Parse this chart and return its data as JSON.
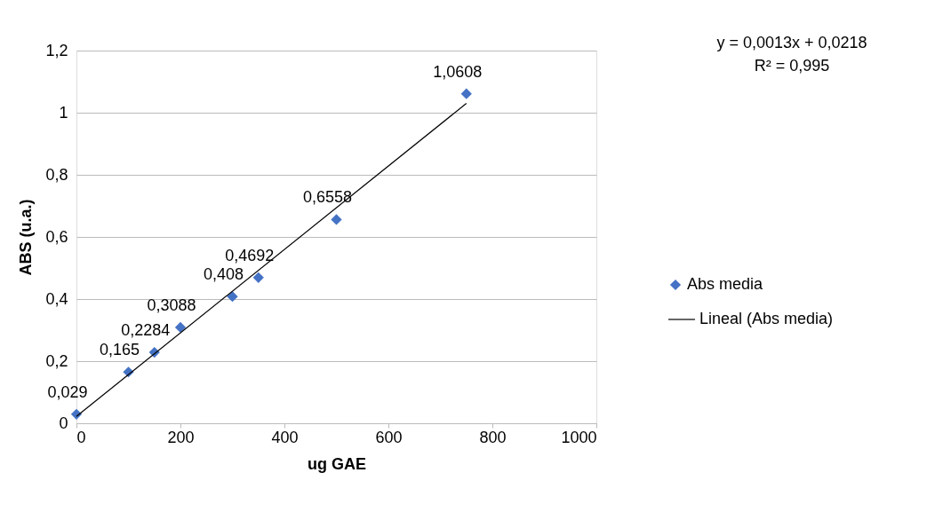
{
  "chart_data": {
    "type": "scatter",
    "xlabel": "ug GAE",
    "ylabel": "ABS (u.a.)",
    "series": [
      {
        "name": "Abs media",
        "type": "scatter",
        "color": "#4472c4",
        "marker": "diamond",
        "x": [
          0,
          100,
          150,
          200,
          300,
          350,
          500,
          750
        ],
        "values": [
          0.029,
          0.165,
          0.2284,
          0.3088,
          0.408,
          0.4692,
          0.6558,
          1.0608
        ],
        "value_labels": [
          "0,029",
          "0,165",
          "0,2284",
          "0,3088",
          "0,408",
          "0,4692",
          "0,6558",
          "1,0608"
        ]
      },
      {
        "name": "Lineal (Abs media)",
        "type": "line",
        "color": "#000000",
        "line_style": "solid",
        "marker": "none",
        "x": [
          0,
          750
        ],
        "values": [
          0.022,
          1.03
        ]
      }
    ],
    "xlim": [
      0,
      1000
    ],
    "xticks": [
      0,
      200,
      400,
      600,
      800,
      1000
    ],
    "ylim": [
      0,
      1.2
    ],
    "yticks": [
      0,
      {
        "value": 0.2,
        "label": "0,2"
      },
      {
        "value": 0.4,
        "label": "0,4"
      },
      {
        "value": 0.6,
        "label": "0,6"
      },
      {
        "value": 0.8,
        "label": "0,8"
      },
      1,
      {
        "value": 1.2,
        "label": "1,2"
      }
    ],
    "grid": "y",
    "legend": "right",
    "annotations": [
      "y = 0,0013x + 0,0218",
      "R² = 0,995"
    ]
  }
}
